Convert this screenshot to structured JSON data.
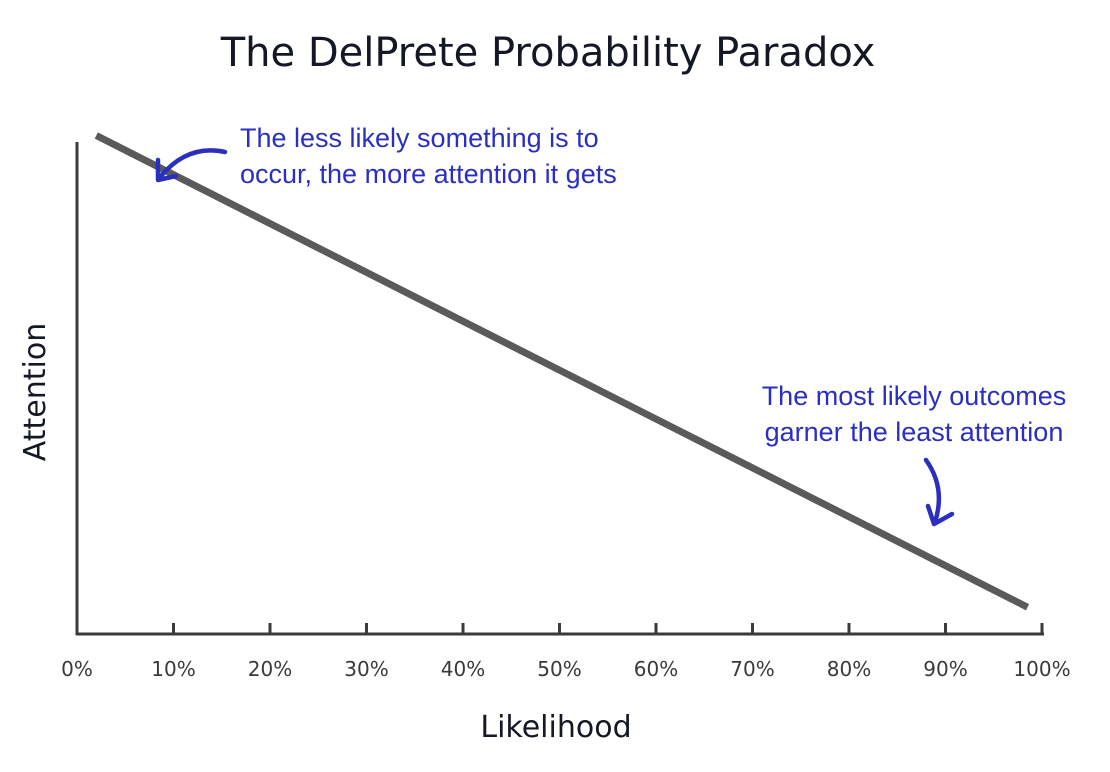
{
  "colors": {
    "text": "#141826",
    "axis": "#3a3a3a",
    "line": "#5a5a5a",
    "annotation": "#2b2fc0"
  },
  "chart_data": {
    "type": "line",
    "title": "The DelPrete Probability Paradox",
    "xlabel": "Likelihood",
    "ylabel": "Attention",
    "xlim": [
      0,
      100
    ],
    "ylim": [
      0,
      100
    ],
    "x_ticks": [
      "0%",
      "10%",
      "20%",
      "30%",
      "40%",
      "50%",
      "60%",
      "70%",
      "80%",
      "90%",
      "100%"
    ],
    "y_ticks_labeled": false,
    "grid": false,
    "series": [
      {
        "x": [
          2,
          98.5
        ],
        "y": [
          93,
          5
        ]
      }
    ],
    "annotations": [
      {
        "lines": [
          "The less likely something is to",
          "occur, the more attention it gets"
        ],
        "arrow_icon": "curved-arrow-left-icon"
      },
      {
        "lines": [
          "The most likely outcomes",
          "garner the least attention"
        ],
        "arrow_icon": "curved-arrow-down-icon"
      }
    ]
  }
}
